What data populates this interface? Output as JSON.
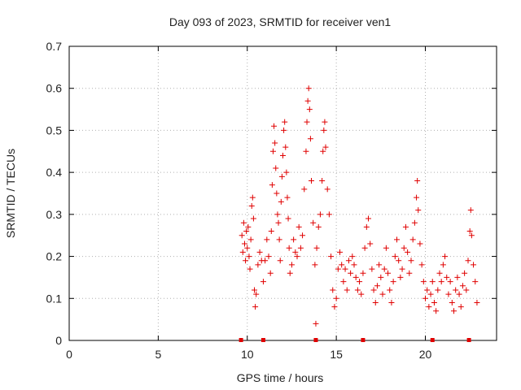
{
  "chart_data": {
    "type": "scatter",
    "title": "Day 093 of 2023, SRMTID for receiver ven1",
    "xlabel": "GPS time / hours",
    "ylabel": "SRMTID / TECUs",
    "xlim": [
      0,
      24
    ],
    "ylim": [
      0,
      0.7
    ],
    "xticks": [
      0,
      5,
      10,
      15,
      20
    ],
    "yticks": [
      0,
      0.1,
      0.2,
      0.3,
      0.4,
      0.5,
      0.6,
      0.7
    ],
    "grid": true,
    "marker": "+",
    "color": "#e00000",
    "series": [
      {
        "name": "SRMTID",
        "points": [
          [
            9.7,
            0.25
          ],
          [
            9.75,
            0.21
          ],
          [
            9.8,
            0.28
          ],
          [
            9.85,
            0.23
          ],
          [
            9.9,
            0.19
          ],
          [
            9.95,
            0.26
          ],
          [
            10.0,
            0.22
          ],
          [
            10.05,
            0.27
          ],
          [
            10.1,
            0.2
          ],
          [
            10.15,
            0.17
          ],
          [
            10.2,
            0.24
          ],
          [
            10.25,
            0.32
          ],
          [
            10.3,
            0.34
          ],
          [
            10.35,
            0.29
          ],
          [
            10.4,
            0.12
          ],
          [
            10.45,
            0.08
          ],
          [
            10.5,
            0.11
          ],
          [
            10.6,
            0.18
          ],
          [
            10.7,
            0.21
          ],
          [
            10.8,
            0.19
          ],
          [
            10.9,
            0.14
          ],
          [
            11.0,
            0.19
          ],
          [
            11.1,
            0.24
          ],
          [
            11.2,
            0.2
          ],
          [
            11.3,
            0.16
          ],
          [
            11.35,
            0.26
          ],
          [
            11.4,
            0.37
          ],
          [
            11.45,
            0.45
          ],
          [
            11.5,
            0.51
          ],
          [
            11.55,
            0.47
          ],
          [
            11.6,
            0.41
          ],
          [
            11.65,
            0.35
          ],
          [
            11.7,
            0.3
          ],
          [
            11.75,
            0.28
          ],
          [
            11.8,
            0.24
          ],
          [
            11.85,
            0.19
          ],
          [
            11.9,
            0.33
          ],
          [
            11.95,
            0.39
          ],
          [
            12.0,
            0.44
          ],
          [
            12.05,
            0.5
          ],
          [
            12.1,
            0.52
          ],
          [
            12.15,
            0.46
          ],
          [
            12.2,
            0.4
          ],
          [
            12.25,
            0.34
          ],
          [
            12.3,
            0.29
          ],
          [
            12.35,
            0.22
          ],
          [
            12.4,
            0.16
          ],
          [
            12.5,
            0.18
          ],
          [
            12.6,
            0.24
          ],
          [
            12.7,
            0.21
          ],
          [
            12.8,
            0.2
          ],
          [
            12.9,
            0.27
          ],
          [
            13.0,
            0.22
          ],
          [
            13.1,
            0.25
          ],
          [
            13.2,
            0.36
          ],
          [
            13.3,
            0.45
          ],
          [
            13.35,
            0.52
          ],
          [
            13.4,
            0.57
          ],
          [
            13.45,
            0.6
          ],
          [
            13.5,
            0.55
          ],
          [
            13.55,
            0.48
          ],
          [
            13.6,
            0.38
          ],
          [
            13.7,
            0.28
          ],
          [
            13.8,
            0.18
          ],
          [
            13.85,
            0.04
          ],
          [
            13.9,
            0.22
          ],
          [
            14.0,
            0.27
          ],
          [
            14.1,
            0.3
          ],
          [
            14.2,
            0.38
          ],
          [
            14.25,
            0.45
          ],
          [
            14.3,
            0.5
          ],
          [
            14.35,
            0.52
          ],
          [
            14.4,
            0.46
          ],
          [
            14.5,
            0.36
          ],
          [
            14.6,
            0.3
          ],
          [
            14.7,
            0.2
          ],
          [
            14.8,
            0.12
          ],
          [
            14.9,
            0.08
          ],
          [
            15.0,
            0.1
          ],
          [
            15.1,
            0.17
          ],
          [
            15.2,
            0.21
          ],
          [
            15.3,
            0.18
          ],
          [
            15.4,
            0.14
          ],
          [
            15.5,
            0.17
          ],
          [
            15.6,
            0.12
          ],
          [
            15.7,
            0.19
          ],
          [
            15.8,
            0.16
          ],
          [
            15.9,
            0.2
          ],
          [
            16.0,
            0.18
          ],
          [
            16.1,
            0.15
          ],
          [
            16.2,
            0.12
          ],
          [
            16.3,
            0.14
          ],
          [
            16.4,
            0.11
          ],
          [
            16.5,
            0.16
          ],
          [
            16.6,
            0.22
          ],
          [
            16.7,
            0.27
          ],
          [
            16.8,
            0.29
          ],
          [
            16.9,
            0.23
          ],
          [
            17.0,
            0.17
          ],
          [
            17.1,
            0.12
          ],
          [
            17.2,
            0.09
          ],
          [
            17.3,
            0.13
          ],
          [
            17.4,
            0.18
          ],
          [
            17.5,
            0.15
          ],
          [
            17.6,
            0.11
          ],
          [
            17.7,
            0.17
          ],
          [
            17.8,
            0.22
          ],
          [
            17.9,
            0.16
          ],
          [
            18.0,
            0.12
          ],
          [
            18.1,
            0.09
          ],
          [
            18.2,
            0.14
          ],
          [
            18.3,
            0.2
          ],
          [
            18.4,
            0.24
          ],
          [
            18.5,
            0.19
          ],
          [
            18.6,
            0.15
          ],
          [
            18.7,
            0.17
          ],
          [
            18.8,
            0.22
          ],
          [
            18.9,
            0.27
          ],
          [
            19.0,
            0.21
          ],
          [
            19.1,
            0.16
          ],
          [
            19.2,
            0.19
          ],
          [
            19.3,
            0.24
          ],
          [
            19.4,
            0.28
          ],
          [
            19.5,
            0.34
          ],
          [
            19.55,
            0.38
          ],
          [
            19.6,
            0.31
          ],
          [
            19.7,
            0.23
          ],
          [
            19.8,
            0.18
          ],
          [
            19.9,
            0.14
          ],
          [
            20.0,
            0.1
          ],
          [
            20.1,
            0.12
          ],
          [
            20.2,
            0.08
          ],
          [
            20.3,
            0.11
          ],
          [
            20.4,
            0.14
          ],
          [
            20.5,
            0.09
          ],
          [
            20.6,
            0.07
          ],
          [
            20.7,
            0.12
          ],
          [
            20.8,
            0.16
          ],
          [
            20.9,
            0.14
          ],
          [
            21.0,
            0.18
          ],
          [
            21.1,
            0.2
          ],
          [
            21.2,
            0.15
          ],
          [
            21.3,
            0.11
          ],
          [
            21.4,
            0.14
          ],
          [
            21.5,
            0.09
          ],
          [
            21.6,
            0.07
          ],
          [
            21.7,
            0.12
          ],
          [
            21.8,
            0.15
          ],
          [
            21.9,
            0.11
          ],
          [
            22.0,
            0.08
          ],
          [
            22.1,
            0.13
          ],
          [
            22.2,
            0.16
          ],
          [
            22.3,
            0.12
          ],
          [
            22.4,
            0.19
          ],
          [
            22.5,
            0.26
          ],
          [
            22.55,
            0.31
          ],
          [
            22.6,
            0.25
          ],
          [
            22.7,
            0.18
          ],
          [
            22.8,
            0.14
          ],
          [
            22.9,
            0.09
          ]
        ]
      }
    ],
    "baseline_markers_x": [
      9.65,
      10.9,
      13.85,
      16.5,
      20.4,
      22.45
    ]
  }
}
